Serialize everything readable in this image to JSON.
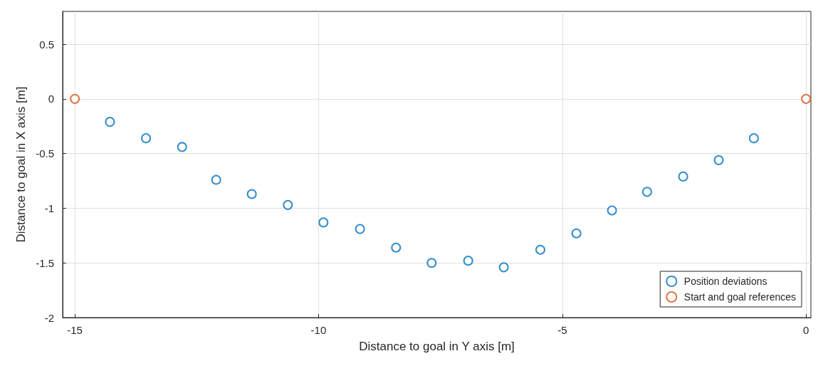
{
  "chart_data": {
    "type": "scatter",
    "xlabel": "Distance to goal in Y axis [m]",
    "ylabel": "Distance to goal in X axis [m]",
    "xlim": [
      -15.25,
      0.1
    ],
    "ylim": [
      -2,
      0.8
    ],
    "xticks": [
      -15,
      -10,
      -5,
      0
    ],
    "yticks": [
      -2,
      -1.5,
      -1,
      -0.5,
      0,
      0.5
    ],
    "grid": true,
    "legend": "bottom right",
    "marker": "circle",
    "series": [
      {
        "name": "Position deviations",
        "color": "#0072bd",
        "x": [
          -14.28,
          -13.54,
          -12.8,
          -12.1,
          -11.37,
          -10.63,
          -9.9,
          -9.15,
          -8.41,
          -7.68,
          -6.93,
          -6.2,
          -5.45,
          -4.71,
          -3.98,
          -3.26,
          -2.52,
          -1.79,
          -1.07
        ],
        "values": [
          -0.21,
          -0.36,
          -0.44,
          -0.74,
          -0.87,
          -0.97,
          -1.13,
          -1.19,
          -1.36,
          -1.5,
          -1.48,
          -1.54,
          -1.38,
          -1.23,
          -1.02,
          -0.85,
          -0.71,
          -0.56,
          -0.36
        ]
      },
      {
        "name": "Start and goal references",
        "color": "#d95319",
        "x": [
          -15,
          0
        ],
        "values": [
          0,
          0
        ]
      }
    ]
  }
}
